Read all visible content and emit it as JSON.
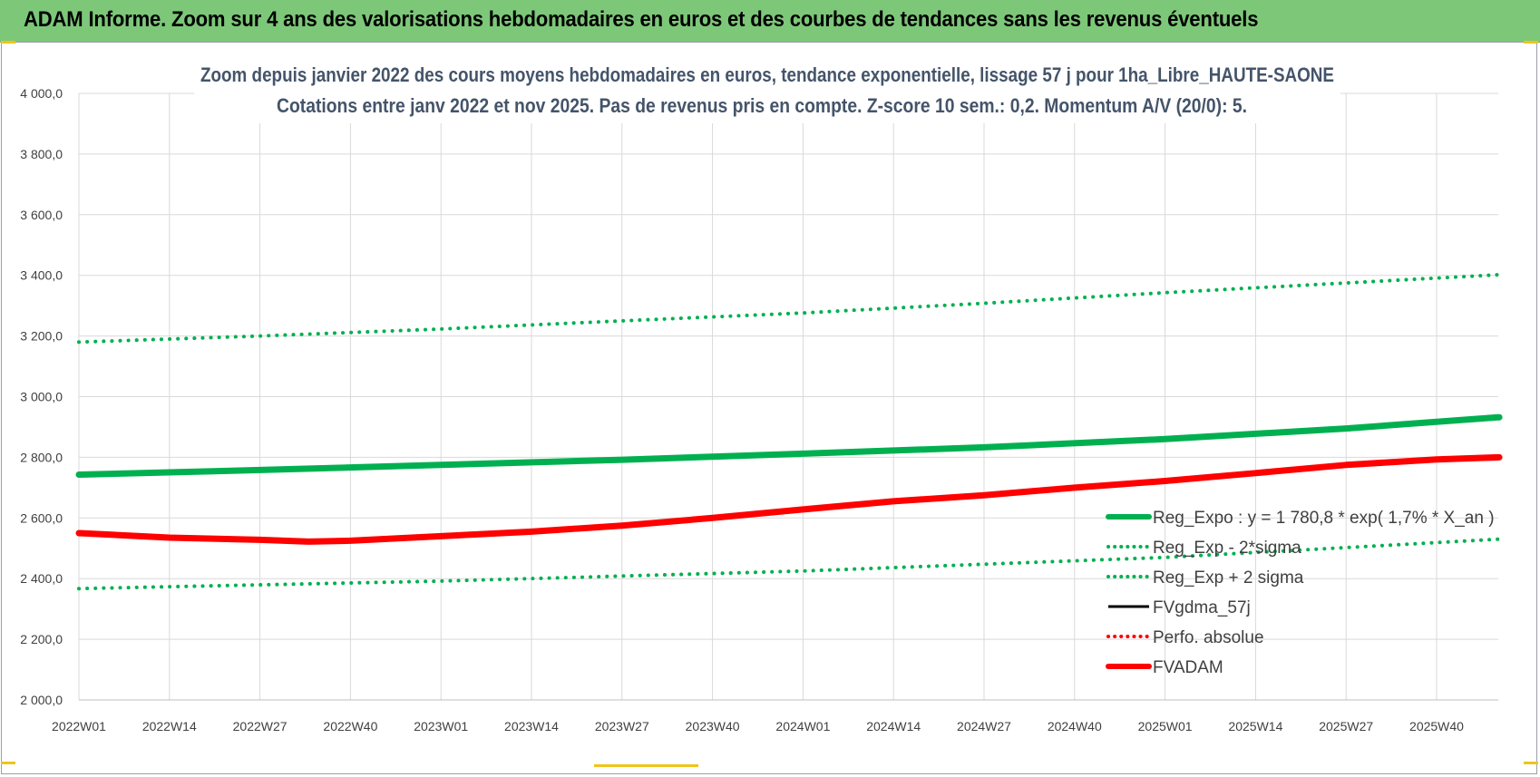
{
  "header": {
    "title": "ADAM Informe. Zoom sur 4 ans des valorisations hebdomadaires en euros et des courbes de tendances sans les revenus éventuels"
  },
  "colors": {
    "banner": "#7dc779",
    "title_text": "#44546a",
    "green": "#00b050",
    "red": "#ff0000",
    "black": "#000000"
  },
  "chart_data": {
    "type": "line",
    "title_line1": "Zoom depuis janvier 2022 des cours moyens hebdomadaires en euros, tendance exponentielle, lissage 57 j pour 1ha_Libre_HAUTE-SAONE",
    "title_line2": "Cotations entre janv 2022 et nov 2025. Pas de revenus pris en compte. Z-score 10 sem.: 0,2. Momentum A/V (20/0): 5.",
    "x_ticks": [
      "2022W01",
      "2022W14",
      "2022W27",
      "2022W40",
      "2023W01",
      "2023W14",
      "2023W27",
      "2023W40",
      "2024W01",
      "2024W14",
      "2024W27",
      "2024W40",
      "2025W01",
      "2025W14",
      "2025W27",
      "2025W40"
    ],
    "x_range": [
      0,
      204
    ],
    "ylim": [
      2000,
      4000
    ],
    "y_ticks": [
      "2 000,0",
      "2 200,0",
      "2 400,0",
      "2 600,0",
      "2 800,0",
      "3 000,0",
      "3 200,0",
      "3 400,0",
      "3 600,0",
      "3 800,0",
      "4 000,0"
    ],
    "y_tick_values": [
      2000,
      2200,
      2400,
      2600,
      2800,
      3000,
      3200,
      3400,
      3600,
      3800,
      4000
    ],
    "grid": true,
    "legend_position": "bottom-right",
    "series": [
      {
        "name": "Reg_Expo : y = 1 780,8 * exp( 1,7% *  X_an )",
        "style": "solid-thick",
        "color": "#00b050",
        "points": [
          [
            0,
            2743
          ],
          [
            26,
            2758
          ],
          [
            52,
            2775
          ],
          [
            78,
            2792
          ],
          [
            104,
            2812
          ],
          [
            130,
            2833
          ],
          [
            156,
            2860
          ],
          [
            182,
            2895
          ],
          [
            204,
            2932
          ]
        ]
      },
      {
        "name": "Reg_Exp - 2*sigma",
        "style": "dotted",
        "color": "#00b050",
        "points": [
          [
            0,
            2367
          ],
          [
            52,
            2392
          ],
          [
            104,
            2425
          ],
          [
            156,
            2470
          ],
          [
            204,
            2530
          ]
        ]
      },
      {
        "name": "Reg_Exp + 2 sigma",
        "style": "dotted",
        "color": "#00b050",
        "points": [
          [
            0,
            3180
          ],
          [
            26,
            3200
          ],
          [
            52,
            3223
          ],
          [
            78,
            3250
          ],
          [
            104,
            3276
          ],
          [
            130,
            3308
          ],
          [
            156,
            3343
          ],
          [
            182,
            3375
          ],
          [
            204,
            3402
          ]
        ]
      },
      {
        "name": "FVgdma_57j",
        "style": "solid",
        "color": "#000000",
        "points": [
          [
            0,
            2550
          ],
          [
            13,
            2535
          ],
          [
            26,
            2528
          ],
          [
            33,
            2526
          ],
          [
            39,
            2528
          ],
          [
            52,
            2540
          ],
          [
            65,
            2555
          ],
          [
            78,
            2575
          ],
          [
            91,
            2600
          ],
          [
            104,
            2628
          ],
          [
            117,
            2655
          ],
          [
            130,
            2675
          ],
          [
            143,
            2700
          ],
          [
            156,
            2722
          ],
          [
            169,
            2748
          ],
          [
            182,
            2775
          ],
          [
            195,
            2793
          ],
          [
            204,
            2800
          ]
        ]
      },
      {
        "name": "Perfo. absolue",
        "style": "dotted",
        "color": "#ff0000",
        "points": [
          [
            0,
            2550
          ],
          [
            13,
            2535
          ],
          [
            26,
            2528
          ],
          [
            33,
            2525
          ],
          [
            39,
            2527
          ],
          [
            52,
            2540
          ],
          [
            65,
            2555
          ],
          [
            78,
            2575
          ],
          [
            91,
            2600
          ],
          [
            104,
            2628
          ],
          [
            117,
            2655
          ],
          [
            130,
            2675
          ],
          [
            143,
            2700
          ],
          [
            156,
            2722
          ],
          [
            169,
            2748
          ],
          [
            182,
            2775
          ],
          [
            195,
            2793
          ],
          [
            204,
            2800
          ]
        ]
      },
      {
        "name": "FVADAM",
        "style": "solid-thick",
        "color": "#ff0000",
        "points": [
          [
            0,
            2550
          ],
          [
            13,
            2535
          ],
          [
            26,
            2528
          ],
          [
            33,
            2522
          ],
          [
            39,
            2525
          ],
          [
            52,
            2540
          ],
          [
            65,
            2555
          ],
          [
            78,
            2575
          ],
          [
            91,
            2600
          ],
          [
            104,
            2628
          ],
          [
            117,
            2655
          ],
          [
            130,
            2675
          ],
          [
            143,
            2700
          ],
          [
            156,
            2722
          ],
          [
            169,
            2748
          ],
          [
            182,
            2775
          ],
          [
            195,
            2793
          ],
          [
            204,
            2800
          ]
        ]
      }
    ]
  }
}
